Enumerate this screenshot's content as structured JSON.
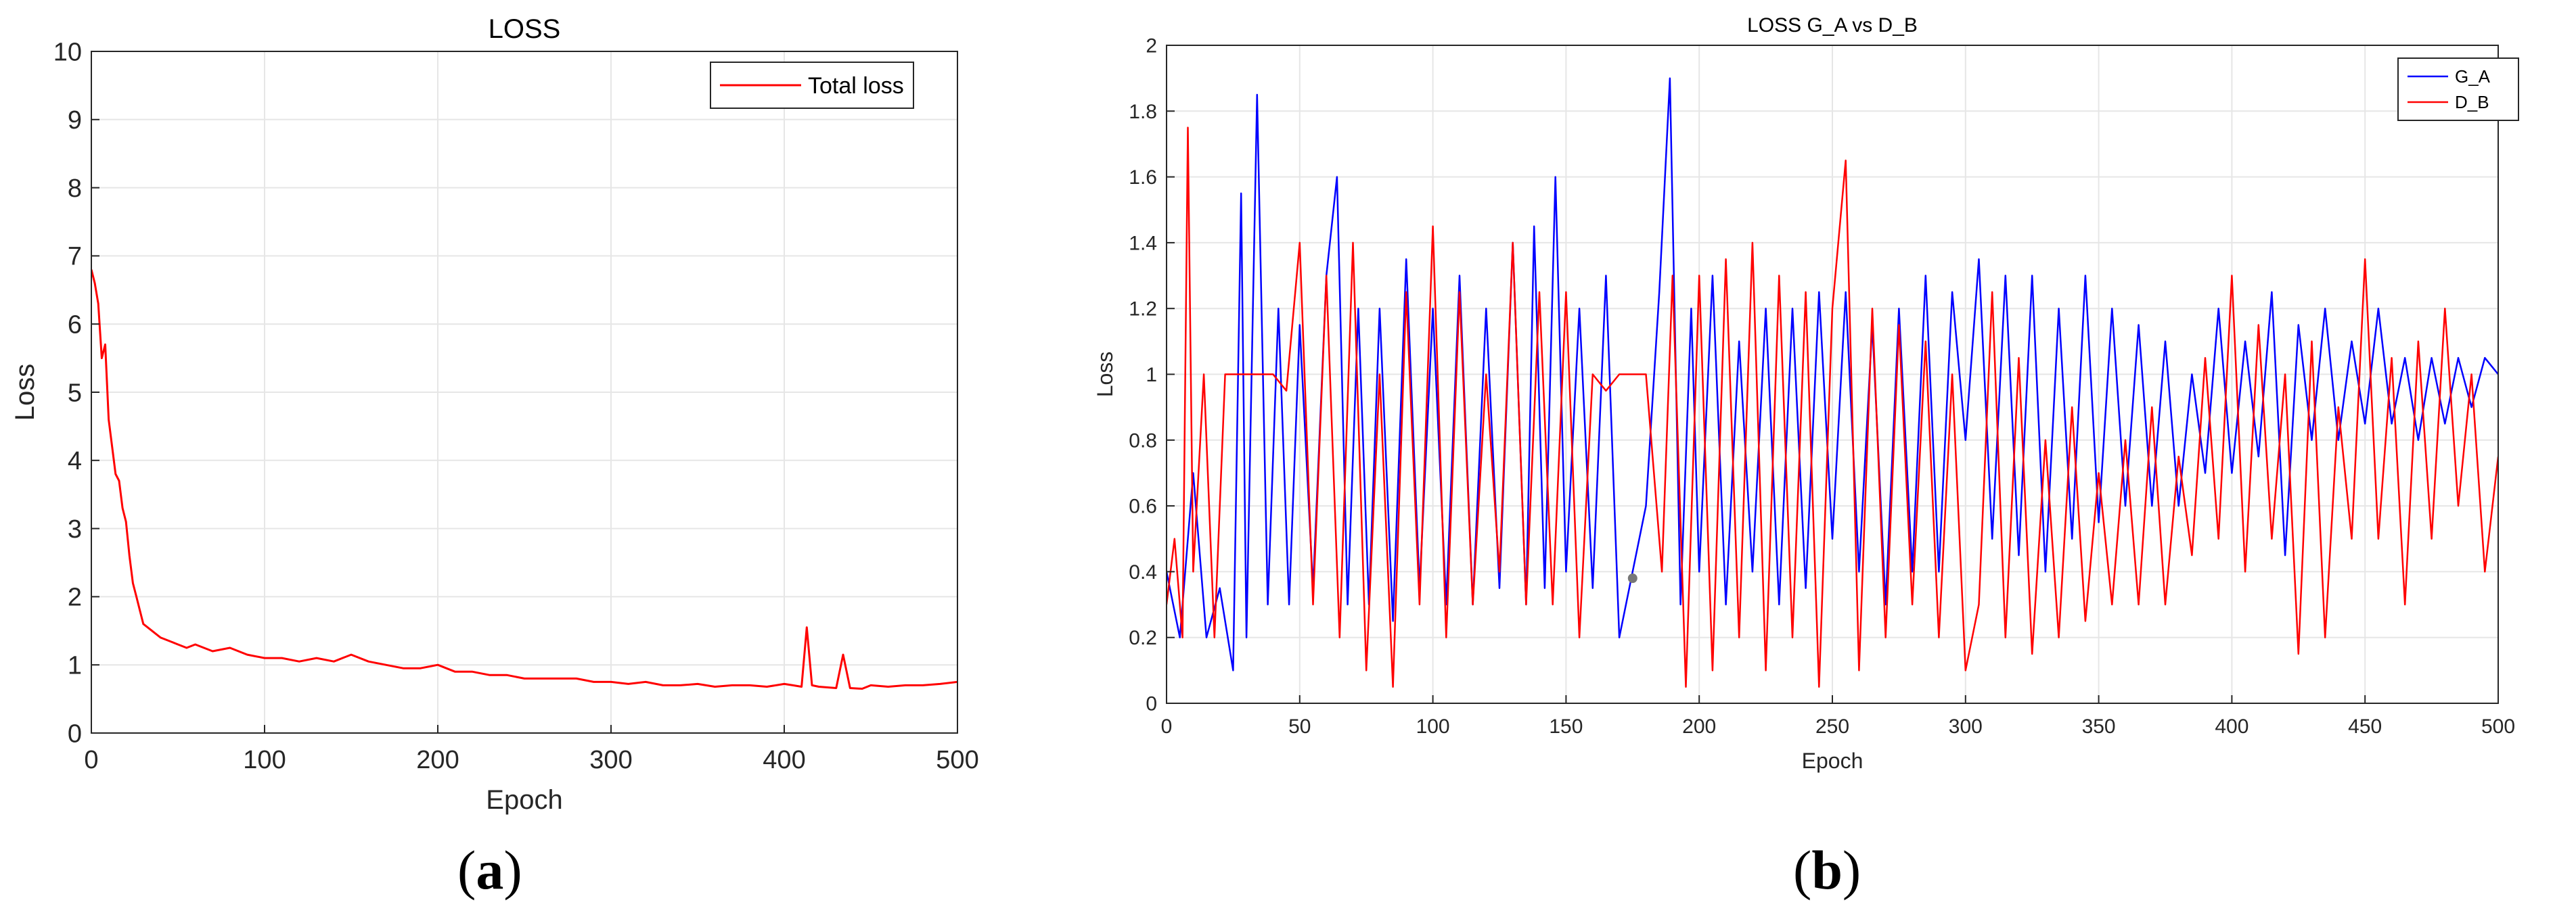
{
  "panels": [
    {
      "label_open": "(",
      "label_letter": "a",
      "label_close": ")"
    },
    {
      "label_open": "(",
      "label_letter": "b",
      "label_close": ")"
    }
  ],
  "chart_data": [
    {
      "type": "line",
      "title": "LOSS",
      "xlabel": "Epoch",
      "ylabel": "Loss",
      "xlim": [
        0,
        500
      ],
      "ylim": [
        0,
        10
      ],
      "xticks": [
        0,
        100,
        200,
        300,
        400,
        500
      ],
      "yticks": [
        0,
        1,
        2,
        3,
        4,
        5,
        6,
        7,
        8,
        9,
        10
      ],
      "grid": true,
      "legend_position": "top-right",
      "series": [
        {
          "name": "Total loss",
          "color": "#ff0000",
          "x": [
            0,
            2,
            4,
            6,
            8,
            10,
            12,
            14,
            16,
            18,
            20,
            22,
            24,
            26,
            28,
            30,
            35,
            40,
            45,
            50,
            55,
            60,
            70,
            80,
            90,
            100,
            110,
            120,
            130,
            140,
            150,
            160,
            170,
            180,
            190,
            200,
            210,
            220,
            230,
            240,
            250,
            260,
            270,
            280,
            290,
            300,
            310,
            320,
            330,
            340,
            350,
            360,
            370,
            380,
            390,
            400,
            405,
            410,
            413,
            416,
            420,
            430,
            434,
            438,
            445,
            450,
            460,
            470,
            480,
            490,
            500
          ],
          "y": [
            6.8,
            6.6,
            6.3,
            5.5,
            5.7,
            4.6,
            4.2,
            3.8,
            3.7,
            3.3,
            3.1,
            2.6,
            2.2,
            2.0,
            1.8,
            1.6,
            1.5,
            1.4,
            1.35,
            1.3,
            1.25,
            1.3,
            1.2,
            1.25,
            1.15,
            1.1,
            1.1,
            1.05,
            1.1,
            1.05,
            1.15,
            1.05,
            1.0,
            0.95,
            0.95,
            1.0,
            0.9,
            0.9,
            0.85,
            0.85,
            0.8,
            0.8,
            0.8,
            0.8,
            0.75,
            0.75,
            0.72,
            0.75,
            0.7,
            0.7,
            0.72,
            0.68,
            0.7,
            0.7,
            0.68,
            0.72,
            0.7,
            0.68,
            1.55,
            0.7,
            0.68,
            0.66,
            1.15,
            0.66,
            0.65,
            0.7,
            0.68,
            0.7,
            0.7,
            0.72,
            0.75
          ]
        }
      ]
    },
    {
      "type": "line",
      "title": "LOSS G_A vs D_B",
      "xlabel": "Epoch",
      "ylabel": "Loss",
      "xlim": [
        0,
        500
      ],
      "ylim": [
        0,
        2
      ],
      "xticks": [
        0,
        50,
        100,
        150,
        200,
        250,
        300,
        350,
        400,
        450,
        500
      ],
      "yticks": [
        0,
        0.2,
        0.4,
        0.6,
        0.8,
        1,
        1.2,
        1.4,
        1.6,
        1.8,
        2
      ],
      "grid": true,
      "legend_position": "top-right",
      "series": [
        {
          "name": "G_A",
          "color": "#0000ff",
          "x": [
            0,
            5,
            10,
            15,
            20,
            25,
            28,
            30,
            34,
            38,
            42,
            46,
            50,
            55,
            60,
            64,
            68,
            72,
            76,
            80,
            85,
            90,
            95,
            100,
            105,
            110,
            115,
            120,
            125,
            130,
            135,
            138,
            142,
            146,
            150,
            155,
            160,
            165,
            170,
            175,
            180,
            185,
            189,
            193,
            197,
            200,
            205,
            210,
            215,
            220,
            225,
            230,
            235,
            240,
            245,
            250,
            255,
            260,
            265,
            270,
            275,
            280,
            285,
            290,
            295,
            300,
            305,
            310,
            315,
            320,
            325,
            330,
            335,
            340,
            345,
            350,
            355,
            360,
            365,
            370,
            375,
            380,
            385,
            390,
            395,
            400,
            405,
            410,
            415,
            420,
            425,
            430,
            435,
            440,
            445,
            450,
            455,
            460,
            465,
            470,
            475,
            480,
            485,
            490,
            495,
            500
          ],
          "y": [
            0.4,
            0.2,
            0.7,
            0.2,
            0.35,
            0.1,
            1.55,
            0.2,
            1.85,
            0.3,
            1.2,
            0.3,
            1.15,
            0.35,
            1.3,
            1.6,
            0.3,
            1.2,
            0.3,
            1.2,
            0.25,
            1.35,
            0.35,
            1.2,
            0.3,
            1.3,
            0.3,
            1.2,
            0.35,
            1.4,
            0.3,
            1.45,
            0.35,
            1.6,
            0.4,
            1.2,
            0.35,
            1.3,
            0.2,
            0.4,
            0.6,
            1.25,
            1.9,
            0.3,
            1.2,
            0.4,
            1.3,
            0.3,
            1.1,
            0.4,
            1.2,
            0.3,
            1.2,
            0.35,
            1.25,
            0.5,
            1.25,
            0.4,
            1.15,
            0.3,
            1.2,
            0.4,
            1.3,
            0.4,
            1.25,
            0.8,
            1.35,
            0.5,
            1.3,
            0.45,
            1.3,
            0.4,
            1.2,
            0.5,
            1.3,
            0.55,
            1.2,
            0.6,
            1.15,
            0.6,
            1.1,
            0.6,
            1.0,
            0.7,
            1.2,
            0.7,
            1.1,
            0.75,
            1.25,
            0.45,
            1.15,
            0.8,
            1.2,
            0.8,
            1.1,
            0.85,
            1.2,
            0.85,
            1.05,
            0.8,
            1.05,
            0.85,
            1.05,
            0.9,
            1.05,
            1.0
          ]
        },
        {
          "name": "D_B",
          "color": "#ff0000",
          "x": [
            0,
            3,
            6,
            8,
            10,
            14,
            18,
            22,
            26,
            30,
            35,
            40,
            45,
            50,
            55,
            60,
            65,
            70,
            75,
            80,
            85,
            90,
            95,
            100,
            105,
            110,
            115,
            120,
            125,
            130,
            135,
            140,
            145,
            150,
            155,
            160,
            165,
            170,
            175,
            180,
            186,
            190,
            195,
            200,
            205,
            210,
            215,
            220,
            225,
            230,
            235,
            240,
            245,
            250,
            255,
            260,
            265,
            270,
            275,
            280,
            285,
            290,
            295,
            300,
            305,
            310,
            315,
            320,
            325,
            330,
            335,
            340,
            345,
            350,
            355,
            360,
            365,
            370,
            375,
            380,
            385,
            390,
            395,
            400,
            405,
            410,
            415,
            420,
            425,
            430,
            435,
            440,
            445,
            450,
            455,
            460,
            465,
            470,
            475,
            480,
            485,
            490,
            495,
            500
          ],
          "y": [
            0.3,
            0.5,
            0.2,
            1.75,
            0.4,
            1.0,
            0.2,
            1.0,
            1.0,
            1.0,
            1.0,
            1.0,
            0.95,
            1.4,
            0.3,
            1.3,
            0.2,
            1.4,
            0.1,
            1.0,
            0.05,
            1.25,
            0.3,
            1.45,
            0.2,
            1.25,
            0.3,
            1.0,
            0.4,
            1.4,
            0.3,
            1.25,
            0.3,
            1.25,
            0.2,
            1.0,
            0.95,
            1.0,
            1.0,
            1.0,
            0.4,
            1.3,
            0.05,
            1.3,
            0.1,
            1.35,
            0.2,
            1.4,
            0.1,
            1.3,
            0.2,
            1.25,
            0.05,
            1.2,
            1.65,
            0.1,
            1.2,
            0.2,
            1.15,
            0.3,
            1.1,
            0.2,
            1.0,
            0.1,
            0.3,
            1.25,
            0.2,
            1.05,
            0.15,
            0.8,
            0.2,
            0.9,
            0.25,
            0.7,
            0.3,
            0.8,
            0.3,
            0.9,
            0.3,
            0.75,
            0.45,
            1.05,
            0.5,
            1.3,
            0.4,
            1.15,
            0.5,
            1.0,
            0.15,
            1.1,
            0.2,
            0.9,
            0.5,
            1.35,
            0.5,
            1.05,
            0.3,
            1.1,
            0.5,
            1.2,
            0.6,
            1.0,
            0.4,
            0.75
          ]
        }
      ],
      "annotations": [
        {
          "type": "marker",
          "x": 175,
          "y": 0.38,
          "color": "#777777"
        }
      ]
    }
  ]
}
